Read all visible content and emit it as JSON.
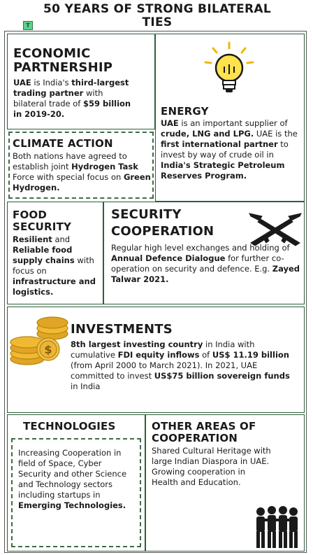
{
  "title": {
    "line1": "50 YEARS OF STRONG BILATERAL",
    "line2": "TIES"
  },
  "economic": {
    "heading_line1": "ECONOMIC",
    "heading_line2": "PARTNERSHIP",
    "t1": "UAE",
    "t2": " is India's ",
    "t3": "third-largest trading partner",
    "t4": " with bilateral trade of ",
    "t5": "$59 billion in 2019-20."
  },
  "energy": {
    "heading": "ENERGY",
    "t1": "UAE",
    "t2": " is an important supplier of ",
    "t3": "crude, LNG and LPG.",
    "t4": " UAE is the ",
    "t5": "first international partner",
    "t6": " to invest by way of crude oil in ",
    "t7": "India's Strategic Petroleum Reserves Program."
  },
  "climate": {
    "heading": "CLIMATE ACTION",
    "t1": "Both nations have agreed to establish joint ",
    "t2": "Hydrogen Task",
    "t3": " Force with special focus on ",
    "t4": "Green Hydrogen."
  },
  "food": {
    "heading_line1": "FOOD",
    "heading_line2": "SECURITY",
    "t1": "Resilient",
    "t2": " and ",
    "t3": "Reliable food supply chains",
    "t4": " with focus on ",
    "t5": "infrastructure and logistics."
  },
  "security": {
    "heading_line1": "SECURITY",
    "heading_line2": "COOPERATION",
    "t1": "Regular high level exchanges and holding of ",
    "t2": "Annual Defence Dialogue",
    "t3": " for further co-operation on security and defence. E.g. ",
    "t4": "Zayed Talwar 2021."
  },
  "investments": {
    "heading": "INVESTMENTS",
    "t1": "8th largest investing country",
    "t2": " in India with cumulative ",
    "t3": "FDI equity inflows",
    "t4": " of ",
    "t5": "US$ 11.19 billion",
    "t6": " (from April 2000 to March 2021). In 2021, UAE committed to invest ",
    "t7": "US$75 billion sovereign funds",
    "t8": " in India"
  },
  "technologies": {
    "heading": "TECHNOLOGIES",
    "t1": "Increasing Cooperation in field of Space, Cyber Security and other Science and Technology sectors including startups in ",
    "t2": "Emerging Technologies."
  },
  "other": {
    "heading_line1": "OTHER AREAS OF",
    "heading_line2": "COOPERATION",
    "t1": "Shared Cultural Heritage with large Indian Diaspora in UAE. Growing cooperation in Health and Education."
  },
  "icons": [
    "logo-icon",
    "light-bulb-icon",
    "crossed-rifles-icon",
    "gold-coins-icon",
    "people-group-icon"
  ]
}
